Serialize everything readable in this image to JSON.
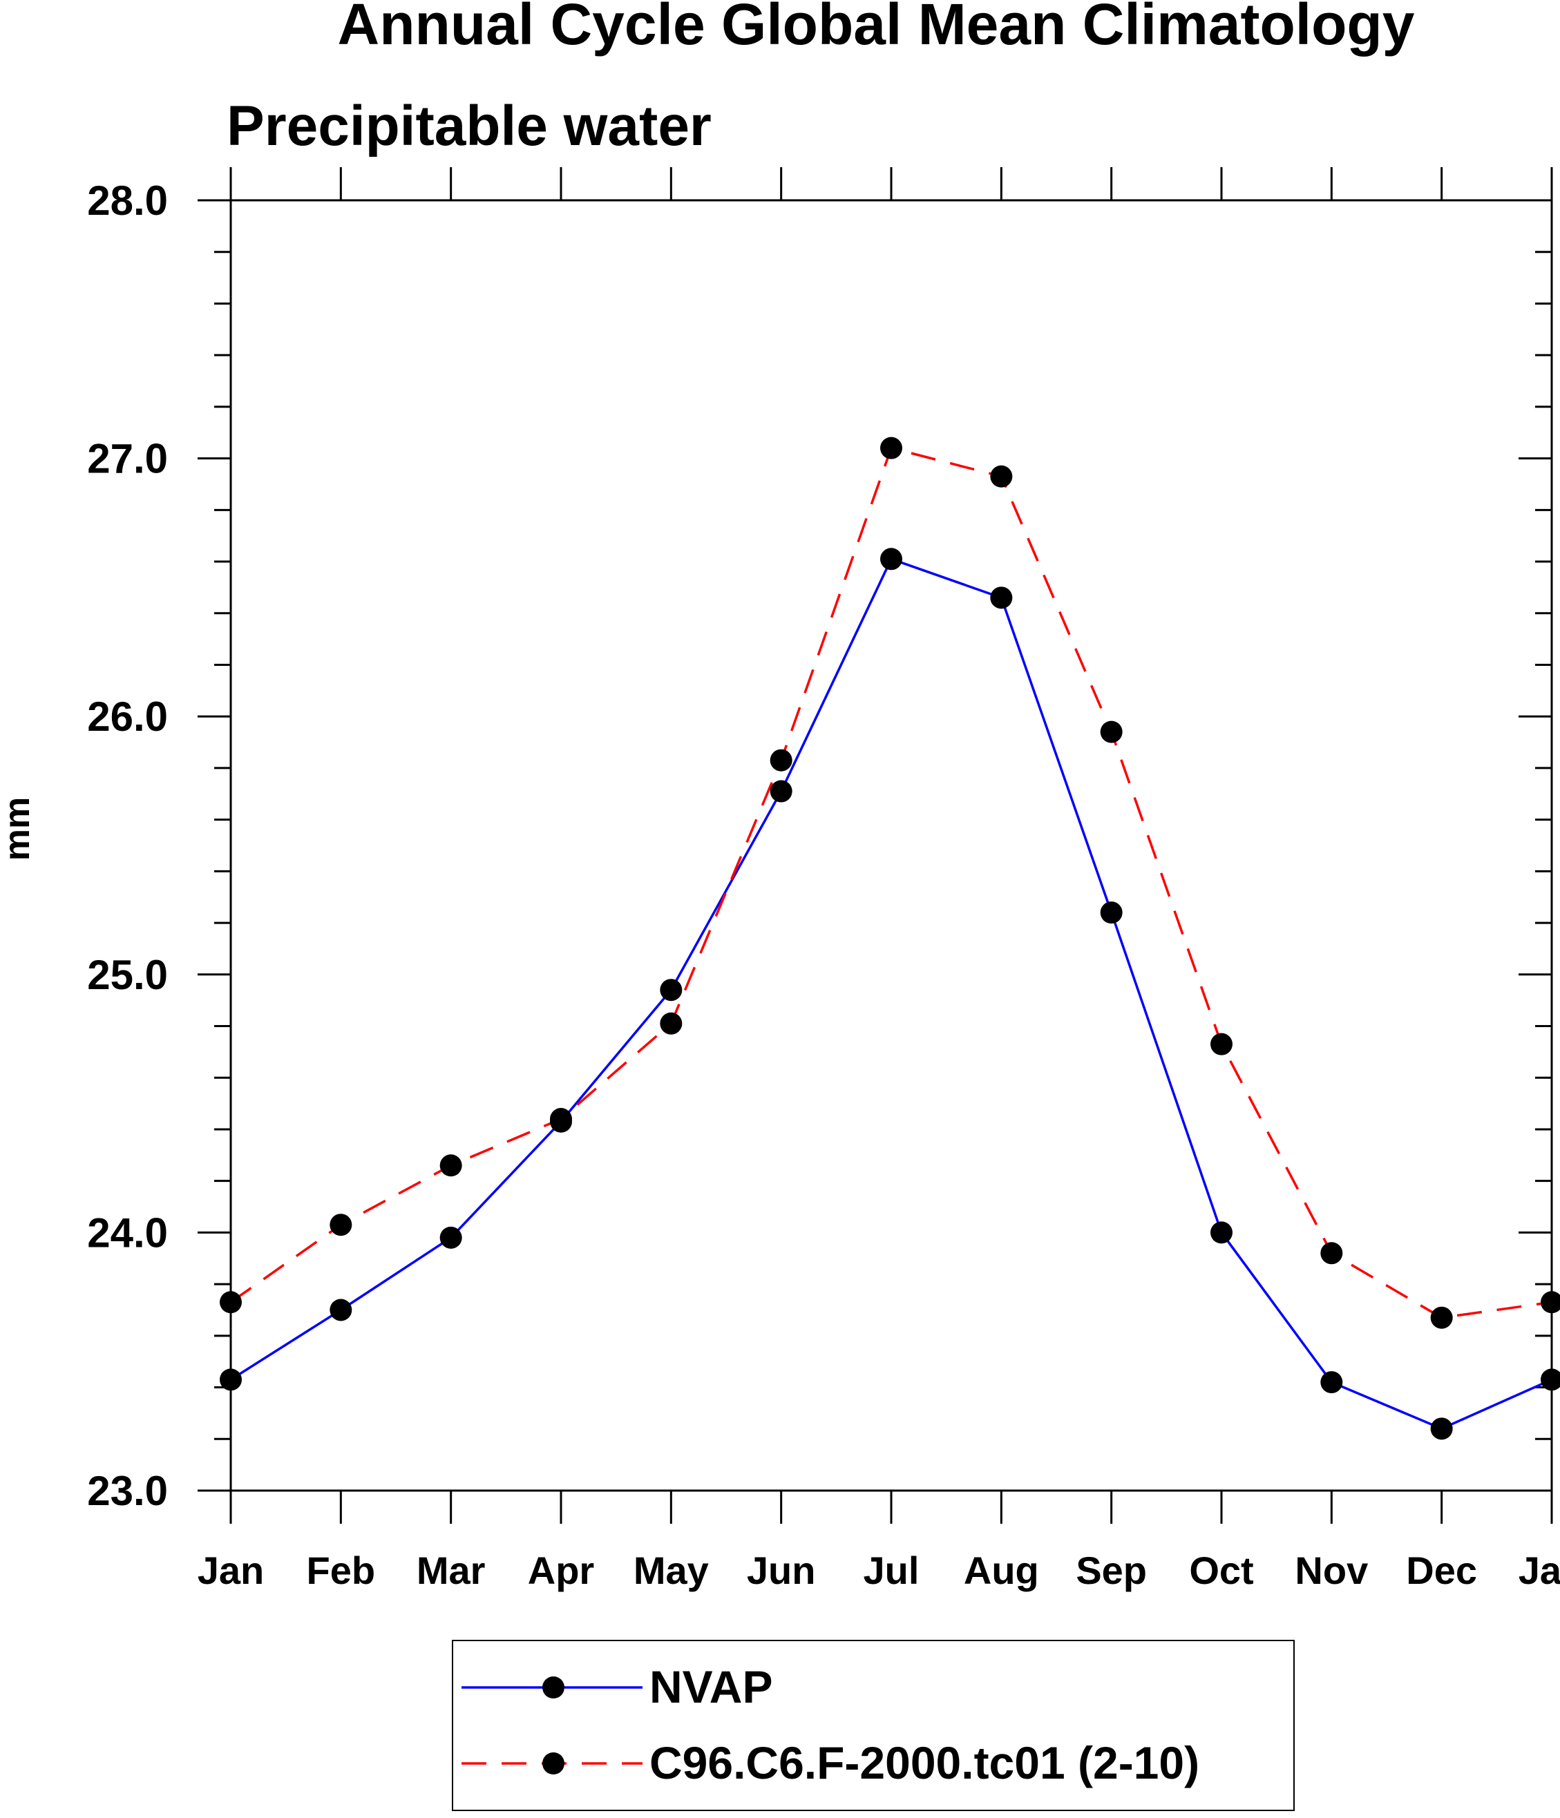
{
  "chart_data": {
    "type": "line",
    "title": "Annual Cycle Global Mean Climatology",
    "subtitle": "Precipitable water",
    "xlabel": "",
    "ylabel": "mm",
    "categories": [
      "Jan",
      "Feb",
      "Mar",
      "Apr",
      "May",
      "Jun",
      "Jul",
      "Aug",
      "Sep",
      "Oct",
      "Nov",
      "Dec",
      "Jan"
    ],
    "ylim": [
      23.0,
      28.0
    ],
    "yticks": [
      "23.0",
      "24.0",
      "25.0",
      "26.0",
      "27.0",
      "28.0"
    ],
    "y_minor_step": 0.2,
    "grid": false,
    "legend_position": "bottom-center",
    "series": [
      {
        "name": "NVAP",
        "color": "#0000ff",
        "dash": "solid",
        "values": [
          23.43,
          23.7,
          23.98,
          24.43,
          24.94,
          25.71,
          26.61,
          26.46,
          25.24,
          24.0,
          23.42,
          23.24,
          23.43
        ]
      },
      {
        "name": "C96.C6.F-2000.tc01 (2-10)",
        "color": "#ff0000",
        "dash": "dashed",
        "values": [
          23.73,
          24.03,
          24.26,
          24.44,
          24.81,
          25.83,
          27.04,
          26.93,
          25.94,
          24.73,
          23.92,
          23.67,
          23.73
        ]
      }
    ]
  }
}
